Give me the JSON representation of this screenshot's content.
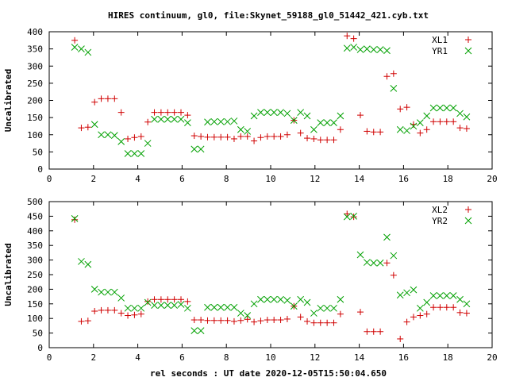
{
  "title": "HIRES continuum, gl0, file:Skynet_59188_gl0_51442_421.cyb.txt",
  "xlabel": "rel seconds : UT date 2020-12-05T15:50:04.650",
  "chart_data": [
    {
      "type": "scatter",
      "ylabel": "Uncalibrated",
      "xlim": [
        0,
        20
      ],
      "ylim": [
        0,
        400
      ],
      "xticks": [
        0,
        2,
        4,
        6,
        8,
        10,
        12,
        14,
        16,
        18,
        20
      ],
      "yticks": [
        0,
        50,
        100,
        150,
        200,
        250,
        300,
        350,
        400
      ],
      "grid": false,
      "legend": "top-right",
      "series": [
        {
          "name": "XL1",
          "marker": "plus",
          "color": "#d00000",
          "points": [
            [
              1.15,
              375
            ],
            [
              1.45,
              120
            ],
            [
              1.75,
              122
            ],
            [
              2.05,
              195
            ],
            [
              2.35,
              205
            ],
            [
              2.65,
              205
            ],
            [
              2.95,
              205
            ],
            [
              3.25,
              165
            ],
            [
              3.55,
              88
            ],
            [
              3.85,
              92
            ],
            [
              4.15,
              95
            ],
            [
              4.45,
              137
            ],
            [
              4.75,
              165
            ],
            [
              5.05,
              165
            ],
            [
              5.35,
              165
            ],
            [
              5.65,
              165
            ],
            [
              5.95,
              165
            ],
            [
              6.25,
              157
            ],
            [
              6.55,
              97
            ],
            [
              6.85,
              95
            ],
            [
              7.15,
              93
            ],
            [
              7.45,
              93
            ],
            [
              7.75,
              93
            ],
            [
              8.05,
              93
            ],
            [
              8.35,
              88
            ],
            [
              8.65,
              95
            ],
            [
              8.95,
              95
            ],
            [
              9.25,
              82
            ],
            [
              9.55,
              92
            ],
            [
              9.85,
              95
            ],
            [
              10.15,
              95
            ],
            [
              10.45,
              95
            ],
            [
              10.75,
              100
            ],
            [
              11.05,
              142
            ],
            [
              11.35,
              105
            ],
            [
              11.65,
              90
            ],
            [
              11.95,
              88
            ],
            [
              12.25,
              85
            ],
            [
              12.55,
              85
            ],
            [
              12.85,
              85
            ],
            [
              13.15,
              115
            ],
            [
              13.45,
              388
            ],
            [
              13.75,
              380
            ],
            [
              14.05,
              157
            ],
            [
              14.35,
              110
            ],
            [
              14.65,
              108
            ],
            [
              14.95,
              108
            ],
            [
              15.25,
              270
            ],
            [
              15.55,
              278
            ],
            [
              15.85,
              175
            ],
            [
              16.15,
              180
            ],
            [
              16.45,
              130
            ],
            [
              16.75,
              105
            ],
            [
              17.05,
              115
            ],
            [
              17.35,
              138
            ],
            [
              17.65,
              138
            ],
            [
              17.95,
              138
            ],
            [
              18.25,
              138
            ],
            [
              18.55,
              120
            ],
            [
              18.85,
              118
            ]
          ]
        },
        {
          "name": "YR1",
          "marker": "cross",
          "color": "#00a000",
          "points": [
            [
              1.15,
              355
            ],
            [
              1.45,
              350
            ],
            [
              1.75,
              340
            ],
            [
              2.05,
              130
            ],
            [
              2.35,
              100
            ],
            [
              2.65,
              100
            ],
            [
              2.95,
              98
            ],
            [
              3.25,
              80
            ],
            [
              3.55,
              45
            ],
            [
              3.85,
              45
            ],
            [
              4.15,
              45
            ],
            [
              4.45,
              75
            ],
            [
              4.75,
              145
            ],
            [
              5.05,
              145
            ],
            [
              5.35,
              145
            ],
            [
              5.65,
              145
            ],
            [
              5.95,
              145
            ],
            [
              6.25,
              135
            ],
            [
              6.55,
              58
            ],
            [
              6.85,
              58
            ],
            [
              7.15,
              137
            ],
            [
              7.45,
              138
            ],
            [
              7.75,
              138
            ],
            [
              8.05,
              138
            ],
            [
              8.35,
              140
            ],
            [
              8.65,
              115
            ],
            [
              8.95,
              110
            ],
            [
              9.25,
              155
            ],
            [
              9.55,
              165
            ],
            [
              9.85,
              165
            ],
            [
              10.15,
              165
            ],
            [
              10.45,
              165
            ],
            [
              10.75,
              162
            ],
            [
              11.05,
              142
            ],
            [
              11.35,
              165
            ],
            [
              11.65,
              155
            ],
            [
              11.95,
              115
            ],
            [
              12.25,
              135
            ],
            [
              12.55,
              135
            ],
            [
              12.85,
              135
            ],
            [
              13.15,
              155
            ],
            [
              13.45,
              352
            ],
            [
              13.75,
              355
            ],
            [
              14.05,
              348
            ],
            [
              14.35,
              350
            ],
            [
              14.65,
              348
            ],
            [
              14.95,
              348
            ],
            [
              15.25,
              345
            ],
            [
              15.55,
              235
            ],
            [
              15.85,
              115
            ],
            [
              16.15,
              112
            ],
            [
              16.45,
              125
            ],
            [
              16.75,
              135
            ],
            [
              17.05,
              155
            ],
            [
              17.35,
              178
            ],
            [
              17.65,
              178
            ],
            [
              17.95,
              178
            ],
            [
              18.25,
              178
            ],
            [
              18.55,
              162
            ],
            [
              18.85,
              152
            ]
          ]
        }
      ]
    },
    {
      "type": "scatter",
      "ylabel": "Uncalibrated",
      "xlim": [
        0,
        20
      ],
      "ylim": [
        0,
        500
      ],
      "xticks": [
        0,
        2,
        4,
        6,
        8,
        10,
        12,
        14,
        16,
        18,
        20
      ],
      "yticks": [
        0,
        50,
        100,
        150,
        200,
        250,
        300,
        350,
        400,
        450,
        500
      ],
      "grid": false,
      "legend": "top-right",
      "series": [
        {
          "name": "XL2",
          "marker": "plus",
          "color": "#d00000",
          "points": [
            [
              1.15,
              438
            ],
            [
              1.45,
              90
            ],
            [
              1.75,
              92
            ],
            [
              2.05,
              125
            ],
            [
              2.35,
              128
            ],
            [
              2.65,
              128
            ],
            [
              2.95,
              128
            ],
            [
              3.25,
              118
            ],
            [
              3.55,
              110
            ],
            [
              3.85,
              112
            ],
            [
              4.15,
              115
            ],
            [
              4.45,
              158
            ],
            [
              4.75,
              165
            ],
            [
              5.05,
              165
            ],
            [
              5.35,
              165
            ],
            [
              5.65,
              165
            ],
            [
              5.95,
              165
            ],
            [
              6.25,
              158
            ],
            [
              6.55,
              95
            ],
            [
              6.85,
              95
            ],
            [
              7.15,
              93
            ],
            [
              7.45,
              93
            ],
            [
              7.75,
              93
            ],
            [
              8.05,
              93
            ],
            [
              8.35,
              90
            ],
            [
              8.65,
              93
            ],
            [
              8.95,
              97
            ],
            [
              9.25,
              88
            ],
            [
              9.55,
              92
            ],
            [
              9.85,
              95
            ],
            [
              10.15,
              95
            ],
            [
              10.45,
              95
            ],
            [
              10.75,
              98
            ],
            [
              11.05,
              142
            ],
            [
              11.35,
              105
            ],
            [
              11.65,
              90
            ],
            [
              11.95,
              85
            ],
            [
              12.25,
              85
            ],
            [
              12.55,
              85
            ],
            [
              12.85,
              85
            ],
            [
              13.15,
              115
            ],
            [
              13.45,
              458
            ],
            [
              13.75,
              448
            ],
            [
              14.05,
              122
            ],
            [
              14.35,
              55
            ],
            [
              14.65,
              55
            ],
            [
              14.95,
              55
            ],
            [
              15.25,
              290
            ],
            [
              15.55,
              248
            ],
            [
              15.85,
              30
            ],
            [
              16.15,
              88
            ],
            [
              16.45,
              105
            ],
            [
              16.75,
              110
            ],
            [
              17.05,
              115
            ],
            [
              17.35,
              138
            ],
            [
              17.65,
              138
            ],
            [
              17.95,
              138
            ],
            [
              18.25,
              138
            ],
            [
              18.55,
              120
            ],
            [
              18.85,
              118
            ]
          ]
        },
        {
          "name": "YR2",
          "marker": "cross",
          "color": "#00a000",
          "points": [
            [
              1.15,
              442
            ],
            [
              1.45,
              295
            ],
            [
              1.75,
              285
            ],
            [
              2.05,
              200
            ],
            [
              2.35,
              190
            ],
            [
              2.65,
              190
            ],
            [
              2.95,
              190
            ],
            [
              3.25,
              170
            ],
            [
              3.55,
              135
            ],
            [
              3.85,
              135
            ],
            [
              4.15,
              135
            ],
            [
              4.45,
              155
            ],
            [
              4.75,
              145
            ],
            [
              5.05,
              145
            ],
            [
              5.35,
              145
            ],
            [
              5.65,
              145
            ],
            [
              5.95,
              148
            ],
            [
              6.25,
              135
            ],
            [
              6.55,
              58
            ],
            [
              6.85,
              58
            ],
            [
              7.15,
              138
            ],
            [
              7.45,
              138
            ],
            [
              7.75,
              138
            ],
            [
              8.05,
              138
            ],
            [
              8.35,
              138
            ],
            [
              8.65,
              118
            ],
            [
              8.95,
              110
            ],
            [
              9.25,
              150
            ],
            [
              9.55,
              165
            ],
            [
              9.85,
              165
            ],
            [
              10.15,
              165
            ],
            [
              10.45,
              165
            ],
            [
              10.75,
              162
            ],
            [
              11.05,
              142
            ],
            [
              11.35,
              165
            ],
            [
              11.65,
              155
            ],
            [
              11.95,
              118
            ],
            [
              12.25,
              135
            ],
            [
              12.55,
              135
            ],
            [
              12.85,
              135
            ],
            [
              13.15,
              165
            ],
            [
              13.45,
              448
            ],
            [
              13.75,
              450
            ],
            [
              14.05,
              318
            ],
            [
              14.35,
              292
            ],
            [
              14.65,
              290
            ],
            [
              14.95,
              290
            ],
            [
              15.25,
              378
            ],
            [
              15.55,
              315
            ],
            [
              15.85,
              180
            ],
            [
              16.15,
              188
            ],
            [
              16.45,
              198
            ],
            [
              16.75,
              135
            ],
            [
              17.05,
              155
            ],
            [
              17.35,
              178
            ],
            [
              17.65,
              178
            ],
            [
              17.95,
              178
            ],
            [
              18.25,
              178
            ],
            [
              18.55,
              165
            ],
            [
              18.85,
              150
            ]
          ]
        }
      ]
    }
  ]
}
